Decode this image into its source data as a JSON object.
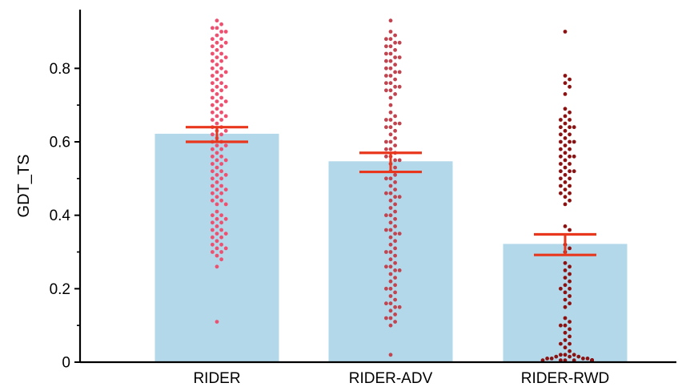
{
  "chart_data": {
    "type": "bar",
    "title": "",
    "xlabel": "",
    "ylabel": "GDT_TS",
    "ylim": [
      0,
      0.96
    ],
    "yticks": [
      "0",
      "0.2",
      "0.4",
      "0.6",
      "0.8"
    ],
    "grid": false,
    "legend": "none",
    "categories": [
      "RIDER",
      "RIDER-ADV",
      "RIDER-RWD"
    ],
    "values": [
      0.622,
      0.547,
      0.322
    ],
    "error": [
      {
        "low": 0.6,
        "high": 0.64
      },
      {
        "low": 0.518,
        "high": 0.57
      },
      {
        "low": 0.292,
        "high": 0.348
      }
    ],
    "points": [
      [
        0.93,
        0.92,
        0.91,
        0.9,
        0.89,
        0.88,
        0.87,
        0.86,
        0.85,
        0.84,
        0.83,
        0.82,
        0.81,
        0.8,
        0.79,
        0.78,
        0.77,
        0.76,
        0.75,
        0.74,
        0.73,
        0.72,
        0.71,
        0.7,
        0.69,
        0.68,
        0.67,
        0.66,
        0.65,
        0.64,
        0.63,
        0.62,
        0.61,
        0.6,
        0.59,
        0.58,
        0.57,
        0.56,
        0.55,
        0.54,
        0.53,
        0.52,
        0.51,
        0.5,
        0.49,
        0.48,
        0.47,
        0.46,
        0.45,
        0.44,
        0.43,
        0.41,
        0.4,
        0.39,
        0.38,
        0.37,
        0.36,
        0.35,
        0.34,
        0.33,
        0.32,
        0.31,
        0.3,
        0.29,
        0.28,
        0.26,
        0.11,
        0.9,
        0.88,
        0.86,
        0.84,
        0.82,
        0.8,
        0.78,
        0.76,
        0.74,
        0.72,
        0.7,
        0.68,
        0.66,
        0.64,
        0.62,
        0.6,
        0.58,
        0.56,
        0.54,
        0.52,
        0.5,
        0.48,
        0.46,
        0.44,
        0.4,
        0.38,
        0.36,
        0.34,
        0.32,
        0.3,
        0.91,
        0.87,
        0.83,
        0.79,
        0.75,
        0.71,
        0.67,
        0.63,
        0.59,
        0.55,
        0.51,
        0.47,
        0.43,
        0.39,
        0.35,
        0.31
      ],
      [
        0.93,
        0.9,
        0.89,
        0.88,
        0.87,
        0.86,
        0.85,
        0.84,
        0.83,
        0.82,
        0.81,
        0.8,
        0.79,
        0.78,
        0.77,
        0.76,
        0.75,
        0.74,
        0.73,
        0.72,
        0.7,
        0.68,
        0.67,
        0.66,
        0.65,
        0.64,
        0.63,
        0.62,
        0.61,
        0.6,
        0.59,
        0.58,
        0.57,
        0.56,
        0.55,
        0.54,
        0.53,
        0.52,
        0.51,
        0.5,
        0.49,
        0.48,
        0.47,
        0.46,
        0.45,
        0.44,
        0.43,
        0.42,
        0.41,
        0.4,
        0.39,
        0.38,
        0.37,
        0.36,
        0.35,
        0.34,
        0.33,
        0.32,
        0.31,
        0.3,
        0.29,
        0.28,
        0.27,
        0.26,
        0.25,
        0.24,
        0.23,
        0.22,
        0.21,
        0.2,
        0.19,
        0.18,
        0.17,
        0.16,
        0.15,
        0.14,
        0.13,
        0.12,
        0.11,
        0.1,
        0.02,
        0.88,
        0.86,
        0.84,
        0.82,
        0.8,
        0.78,
        0.76,
        0.74,
        0.66,
        0.64,
        0.6,
        0.58,
        0.56,
        0.5,
        0.46,
        0.4,
        0.36,
        0.3,
        0.26,
        0.2,
        0.16,
        0.12,
        0.87,
        0.83,
        0.79,
        0.75,
        0.65,
        0.55,
        0.45,
        0.35,
        0.25,
        0.15
      ],
      [
        0.9,
        0.78,
        0.77,
        0.76,
        0.75,
        0.73,
        0.69,
        0.68,
        0.67,
        0.66,
        0.65,
        0.64,
        0.63,
        0.62,
        0.61,
        0.6,
        0.59,
        0.58,
        0.57,
        0.56,
        0.55,
        0.54,
        0.53,
        0.52,
        0.51,
        0.5,
        0.49,
        0.48,
        0.47,
        0.46,
        0.45,
        0.44,
        0.43,
        0.37,
        0.36,
        0.32,
        0.31,
        0.3,
        0.27,
        0.26,
        0.25,
        0.24,
        0.23,
        0.22,
        0.21,
        0.2,
        0.19,
        0.18,
        0.17,
        0.16,
        0.15,
        0.12,
        0.11,
        0.1,
        0.09,
        0.08,
        0.07,
        0.06,
        0.05,
        0.04,
        0.03,
        0.02,
        0.01,
        0.005,
        0.005,
        0.005,
        0.005,
        0.005,
        0.005,
        0.005,
        0.005,
        0.005,
        0.005,
        0.005,
        0.005,
        0.005,
        0.005,
        0.005,
        0.005,
        0.005,
        0.005,
        0.005,
        0.005,
        0.005,
        0.005,
        0.01,
        0.01,
        0.01,
        0.015,
        0.015,
        0.015,
        0.02,
        0.02,
        0.66,
        0.64,
        0.62,
        0.6,
        0.58,
        0.56,
        0.54,
        0.52,
        0.5,
        0.48,
        0.46,
        0.64,
        0.6,
        0.56,
        0.52,
        0.2,
        0.1,
        0.05
      ]
    ],
    "colors": {
      "bar": "#b3d8ea",
      "error": "#e8371c",
      "points": [
        "#ef5070",
        "#c04550",
        "#8b1212"
      ]
    }
  }
}
